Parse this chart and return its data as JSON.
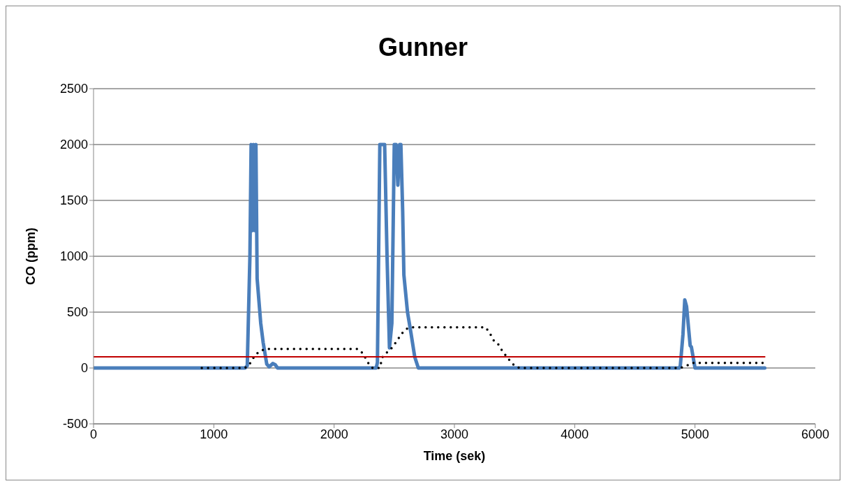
{
  "chart_data": {
    "type": "line",
    "title": "Gunner",
    "xlabel": "Time (sek)",
    "ylabel": "CO (ppm)",
    "xlim": [
      0,
      6000
    ],
    "xticks": [
      0,
      1000,
      2000,
      3000,
      4000,
      5000,
      6000
    ],
    "ylim": [
      -500,
      2500
    ],
    "yticks": [
      -500,
      0,
      500,
      1000,
      1500,
      2000,
      2500
    ],
    "grid": "y",
    "legend": false,
    "marker": "none",
    "series": [
      {
        "color": "#4a7ebb",
        "line_style": "solid",
        "x": [
          0,
          1260,
          1278,
          1300,
          1310,
          1320,
          1330,
          1340,
          1350,
          1360,
          1390,
          1410,
          1440,
          1460,
          1490,
          1510,
          1530,
          2350,
          2360,
          2380,
          2420,
          2440,
          2460,
          2480,
          2500,
          2515,
          2530,
          2545,
          2555,
          2570,
          2580,
          2610,
          2640,
          2670,
          2700,
          2720,
          4870,
          4878,
          4900,
          4915,
          4930,
          4960,
          4970,
          5000,
          5580
        ],
        "values": [
          0,
          0,
          20,
          1000,
          2000,
          1230,
          2000,
          1230,
          2000,
          800,
          400,
          229,
          35,
          10,
          40,
          30,
          0,
          0,
          50,
          2000,
          2000,
          1000,
          180,
          400,
          2000,
          2000,
          1636,
          2000,
          2000,
          1400,
          833,
          500,
          305,
          100,
          0,
          0,
          0,
          20,
          300,
          610,
          550,
          200,
          188,
          0,
          0
        ]
      },
      {
        "color": "#000000",
        "line_style": "dotted",
        "x": [
          900,
          1260,
          1300,
          1340,
          1380,
          1430,
          2200,
          2240,
          2280,
          2320,
          2380,
          2400,
          2440,
          2480,
          2520,
          2560,
          2600,
          2640,
          3260,
          3300,
          3330,
          3360,
          3400,
          3450,
          3500,
          3540,
          4880,
          4920,
          4960,
          4980,
          5580
        ],
        "values": [
          0,
          0,
          40,
          110,
          150,
          170,
          170,
          130,
          50,
          0,
          0,
          94,
          140,
          180,
          240,
          305,
          350,
          364,
          364,
          300,
          240,
          220,
          150,
          80,
          20,
          0,
          0,
          15,
          35,
          45,
          45
        ]
      },
      {
        "color": "#c00000",
        "line_style": "solid",
        "x": [
          0,
          5580
        ],
        "values": [
          100,
          100
        ]
      }
    ]
  }
}
